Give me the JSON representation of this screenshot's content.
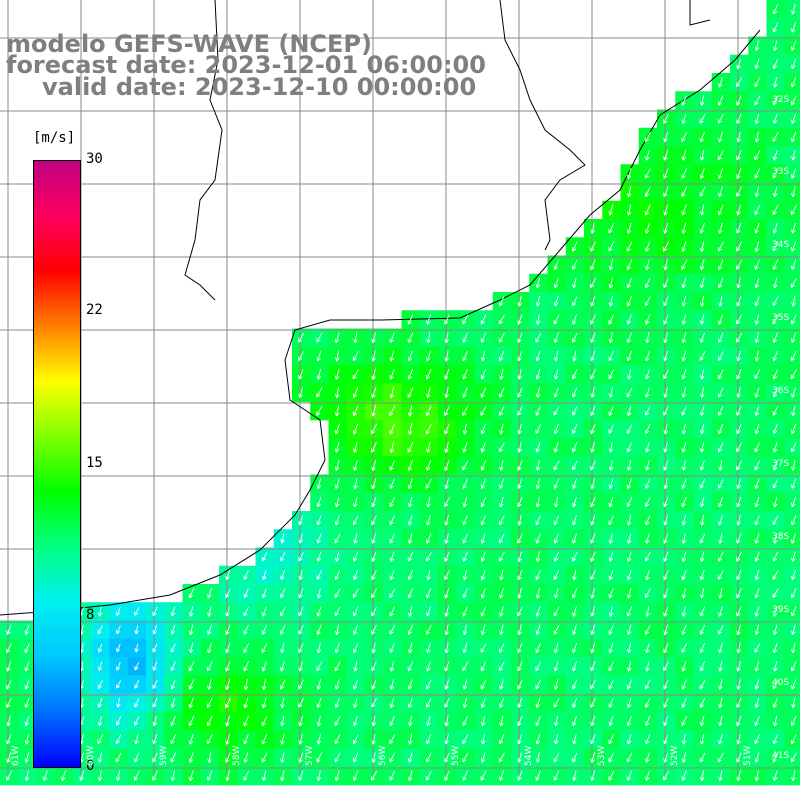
{
  "title": {
    "line1": "modelo GEFS-WAVE (NCEP)",
    "line2": "forecast date: 2023-12-01 06:00:00",
    "line3": "valid date: 2023-12-10 00:00:00"
  },
  "colorbar": {
    "unit": "[m/s]",
    "min": 0,
    "max": 30,
    "ticks": [
      "30",
      "22",
      "15",
      "8",
      "0"
    ],
    "stops": [
      "#0000ff",
      "#0070ff",
      "#00c8ff",
      "#00f0f0",
      "#00ff80",
      "#00ff00",
      "#80ff00",
      "#ffff00",
      "#ff8000",
      "#ff0000",
      "#ff0060",
      "#c00080"
    ]
  },
  "map": {
    "lat_labels": [
      "32S",
      "33S",
      "34S",
      "35S",
      "36S",
      "37S",
      "38S",
      "39S",
      "40S",
      "41S"
    ],
    "lon_labels": [
      "61W",
      "60W",
      "59W",
      "58W",
      "57W",
      "56W",
      "55W",
      "54W",
      "53W",
      "52W",
      "51W"
    ],
    "wind_direction": "NNE to SSW",
    "speed_range_ms": [
      4,
      17
    ]
  }
}
